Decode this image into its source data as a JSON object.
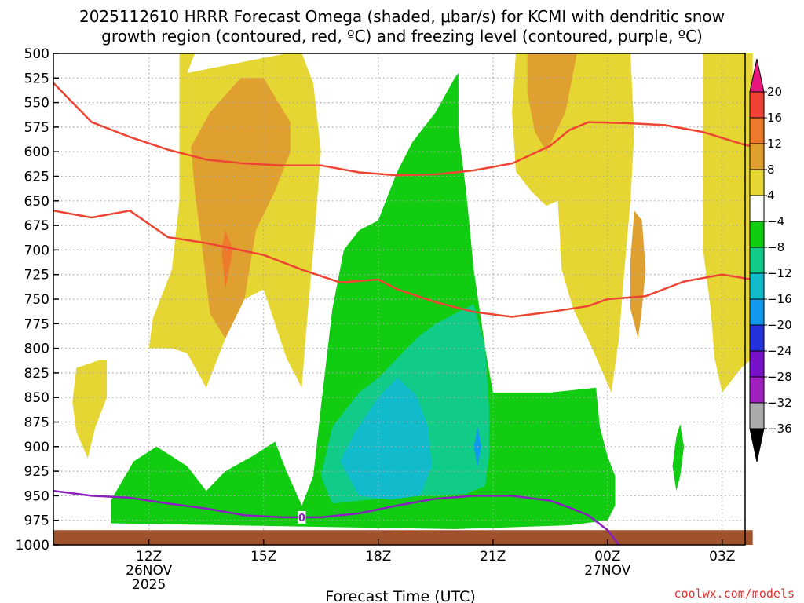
{
  "title_line1": "2025112610 HRRR Forecast Omega (shaded, μbar/s) for KCMI with dendritic snow",
  "title_line2": "growth region (contoured, red, ºC) and freezing level (contoured, purple, ºC)",
  "xlabel": "Forecast Time (UTC)",
  "credit": "coolwx.com/models",
  "freezing_label": "0",
  "colors": {
    "plot_bg": "#ffffff",
    "grid": "#aaaaaa",
    "ground": "#a0522d",
    "dgz_line": "#ee4433",
    "freezing_line": "#8a1fc0"
  },
  "chart_data": {
    "type": "heatmap",
    "x_range_hours": [
      9.5,
      27.6
    ],
    "y_range_mb": [
      500,
      1000
    ],
    "y_scale": "linear, pressure increasing downward",
    "grid": true,
    "y_ticks": [
      500,
      525,
      550,
      575,
      600,
      625,
      650,
      675,
      700,
      725,
      750,
      775,
      800,
      825,
      850,
      875,
      900,
      925,
      950,
      975,
      1000
    ],
    "x_ticks": [
      {
        "hour": 12,
        "label": "12Z",
        "sub1": "26NOV",
        "sub2": "2025"
      },
      {
        "hour": 15,
        "label": "15Z",
        "sub1": "",
        "sub2": ""
      },
      {
        "hour": 18,
        "label": "18Z",
        "sub1": "",
        "sub2": ""
      },
      {
        "hour": 21,
        "label": "21Z",
        "sub1": "",
        "sub2": ""
      },
      {
        "hour": 24,
        "label": "00Z",
        "sub1": "27NOV",
        "sub2": ""
      },
      {
        "hour": 27,
        "label": "03Z",
        "sub1": "",
        "sub2": ""
      }
    ],
    "colorbar": {
      "labels": [
        "20",
        "16",
        "12",
        "8",
        "4",
        "−4",
        "−8",
        "−12",
        "−16",
        "−20",
        "−24",
        "−28",
        "−32",
        "−36"
      ],
      "bins": [
        {
          "range": [
            20,
            99
          ],
          "color": "#e8177f"
        },
        {
          "range": [
            16,
            20
          ],
          "color": "#f24236"
        },
        {
          "range": [
            12,
            16
          ],
          "color": "#ec7a2a"
        },
        {
          "range": [
            8,
            12
          ],
          "color": "#e0a030"
        },
        {
          "range": [
            4,
            8
          ],
          "color": "#e6d634"
        },
        {
          "range": [
            -4,
            4
          ],
          "color": "#ffffff"
        },
        {
          "range": [
            -8,
            -4
          ],
          "color": "#11cc11"
        },
        {
          "range": [
            -12,
            -8
          ],
          "color": "#11cc88"
        },
        {
          "range": [
            -16,
            -12
          ],
          "color": "#11bbcc"
        },
        {
          "range": [
            -20,
            -16
          ],
          "color": "#1199ee"
        },
        {
          "range": [
            -24,
            -20
          ],
          "color": "#2233dd"
        },
        {
          "range": [
            -28,
            -24
          ],
          "color": "#7711cc"
        },
        {
          "range": [
            -32,
            -28
          ],
          "color": "#a020c0"
        },
        {
          "range": [
            -36,
            -32
          ],
          "color": "#aaaaaa"
        },
        {
          "range": [
            -99,
            -36
          ],
          "color": "#000000"
        }
      ]
    },
    "shaded_regions": [
      {
        "value_bin": "4 to 8",
        "color": "#e6d634",
        "points": [
          [
            12.8,
            500
          ],
          [
            13.2,
            500
          ],
          [
            13.0,
            520
          ],
          [
            15.6,
            500
          ],
          [
            16.0,
            500
          ],
          [
            16.3,
            530
          ],
          [
            16.5,
            600
          ],
          [
            16.3,
            700
          ],
          [
            16.1,
            790
          ],
          [
            16.0,
            840
          ],
          [
            15.6,
            810
          ],
          [
            15.0,
            740
          ],
          [
            14.5,
            750
          ],
          [
            14.0,
            790
          ],
          [
            13.5,
            840
          ],
          [
            13.0,
            805
          ],
          [
            12.6,
            800
          ],
          [
            12.0,
            800
          ],
          [
            12.1,
            770
          ],
          [
            12.6,
            720
          ],
          [
            12.8,
            650
          ],
          [
            12.8,
            580
          ]
        ]
      },
      {
        "value_bin": "4 to 8",
        "color": "#e6d634",
        "points": [
          [
            21.6,
            500
          ],
          [
            24.6,
            500
          ],
          [
            24.7,
            580
          ],
          [
            24.6,
            650
          ],
          [
            24.4,
            740
          ],
          [
            24.3,
            790
          ],
          [
            24.1,
            845
          ],
          [
            23.6,
            800
          ],
          [
            23.1,
            760
          ],
          [
            22.8,
            720
          ],
          [
            22.7,
            650
          ],
          [
            22.4,
            655
          ],
          [
            22.0,
            640
          ],
          [
            21.6,
            620
          ],
          [
            21.5,
            560
          ]
        ]
      },
      {
        "value_bin": "4 to 8",
        "color": "#e6d634",
        "points": [
          [
            26.5,
            500
          ],
          [
            27.8,
            500
          ],
          [
            27.8,
            810
          ],
          [
            27.5,
            820
          ],
          [
            27.0,
            845
          ],
          [
            26.8,
            810
          ],
          [
            26.7,
            760
          ],
          [
            26.5,
            700
          ],
          [
            26.5,
            600
          ]
        ]
      },
      {
        "value_bin": "4 to 8",
        "color": "#e6d634",
        "points": [
          [
            10.1,
            820
          ],
          [
            10.7,
            812
          ],
          [
            10.9,
            812
          ],
          [
            10.9,
            850
          ],
          [
            10.6,
            880
          ],
          [
            10.4,
            912
          ],
          [
            10.1,
            885
          ],
          [
            10.0,
            855
          ]
        ]
      },
      {
        "value_bin": "8 to 12",
        "color": "#e0a030",
        "points": [
          [
            13.6,
            560
          ],
          [
            14.4,
            525
          ],
          [
            15.0,
            525
          ],
          [
            15.7,
            570
          ],
          [
            15.7,
            600
          ],
          [
            15.3,
            640
          ],
          [
            14.8,
            680
          ],
          [
            14.5,
            750
          ],
          [
            14.0,
            790
          ],
          [
            13.6,
            765
          ],
          [
            13.4,
            700
          ],
          [
            13.2,
            640
          ],
          [
            13.1,
            595
          ]
        ]
      },
      {
        "value_bin": "8 to 12",
        "color": "#e0a030",
        "points": [
          [
            21.9,
            500
          ],
          [
            23.2,
            500
          ],
          [
            22.9,
            560
          ],
          [
            22.4,
            600
          ],
          [
            22.1,
            580
          ],
          [
            21.9,
            540
          ]
        ]
      },
      {
        "value_bin": "8 to 12",
        "color": "#e0a030",
        "points": [
          [
            24.7,
            660
          ],
          [
            24.9,
            670
          ],
          [
            25.0,
            720
          ],
          [
            24.9,
            760
          ],
          [
            24.8,
            790
          ],
          [
            24.6,
            760
          ],
          [
            24.6,
            710
          ]
        ]
      },
      {
        "value_bin": "12 to 16",
        "color": "#ec7a2a",
        "points": [
          [
            14.0,
            680
          ],
          [
            14.2,
            700
          ],
          [
            14.0,
            740
          ],
          [
            13.9,
            700
          ]
        ]
      },
      {
        "value_bin": "-4 to -8",
        "color": "#11cc11",
        "points": [
          [
            11.0,
            955
          ],
          [
            11.6,
            915
          ],
          [
            12.2,
            900
          ],
          [
            13.0,
            920
          ],
          [
            13.5,
            945
          ],
          [
            14.0,
            925
          ],
          [
            14.7,
            910
          ],
          [
            15.3,
            895
          ],
          [
            15.6,
            925
          ],
          [
            16.0,
            960
          ],
          [
            16.3,
            930
          ],
          [
            16.5,
            860
          ],
          [
            16.8,
            760
          ],
          [
            17.1,
            700
          ],
          [
            17.5,
            680
          ],
          [
            18.0,
            670
          ],
          [
            18.5,
            620
          ],
          [
            18.9,
            590
          ],
          [
            19.5,
            560
          ],
          [
            20.0,
            525
          ],
          [
            20.1,
            520
          ],
          [
            20.1,
            580
          ],
          [
            20.3,
            640
          ],
          [
            20.5,
            720
          ],
          [
            20.8,
            800
          ],
          [
            21.0,
            845
          ],
          [
            22.5,
            845
          ],
          [
            23.7,
            840
          ],
          [
            23.8,
            880
          ],
          [
            24.0,
            910
          ],
          [
            24.2,
            930
          ],
          [
            24.2,
            960
          ],
          [
            24.0,
            975
          ],
          [
            23.0,
            980
          ],
          [
            20.0,
            984
          ],
          [
            17.0,
            982
          ],
          [
            14.0,
            980
          ],
          [
            11.0,
            978
          ]
        ]
      },
      {
        "value_bin": "-4 to -8",
        "color": "#11cc11",
        "points": [
          [
            25.8,
            890
          ],
          [
            25.9,
            877
          ],
          [
            26.0,
            900
          ],
          [
            25.9,
            930
          ],
          [
            25.8,
            945
          ],
          [
            25.7,
            920
          ]
        ]
      },
      {
        "value_bin": "-8 to -12",
        "color": "#11cc88",
        "points": [
          [
            16.5,
            930
          ],
          [
            16.8,
            880
          ],
          [
            17.5,
            845
          ],
          [
            18.0,
            830
          ],
          [
            18.5,
            810
          ],
          [
            19.0,
            790
          ],
          [
            19.5,
            775
          ],
          [
            20.0,
            765
          ],
          [
            20.5,
            755
          ],
          [
            20.8,
            800
          ],
          [
            20.9,
            860
          ],
          [
            20.9,
            910
          ],
          [
            20.8,
            940
          ],
          [
            20.3,
            948
          ],
          [
            19.5,
            950
          ],
          [
            18.9,
            950
          ],
          [
            18.3,
            952
          ],
          [
            17.5,
            955
          ],
          [
            16.8,
            958
          ]
        ]
      },
      {
        "value_bin": "-12 to -16",
        "color": "#11bbcc",
        "points": [
          [
            17.0,
            915
          ],
          [
            17.4,
            885
          ],
          [
            18.0,
            850
          ],
          [
            18.5,
            830
          ],
          [
            19.0,
            848
          ],
          [
            19.3,
            880
          ],
          [
            19.4,
            920
          ],
          [
            19.1,
            950
          ],
          [
            18.3,
            954
          ],
          [
            17.5,
            950
          ]
        ]
      },
      {
        "value_bin": "-16 to -20",
        "color": "#1199ee",
        "points": [
          [
            20.6,
            880
          ],
          [
            20.7,
            900
          ],
          [
            20.6,
            920
          ],
          [
            20.5,
            900
          ]
        ]
      }
    ],
    "dgz_contours": [
      {
        "name": "upper",
        "points": [
          [
            9.5,
            530
          ],
          [
            10.5,
            570
          ],
          [
            11.5,
            585
          ],
          [
            12.5,
            598
          ],
          [
            13.5,
            608
          ],
          [
            14.5,
            612
          ],
          [
            15.5,
            614
          ],
          [
            16.5,
            614
          ],
          [
            17.5,
            621
          ],
          [
            18.5,
            624
          ],
          [
            19.5,
            623
          ],
          [
            20.5,
            619
          ],
          [
            21.5,
            612
          ],
          [
            22.5,
            594
          ],
          [
            23.0,
            578
          ],
          [
            23.5,
            570
          ],
          [
            24.5,
            571
          ],
          [
            25.5,
            573
          ],
          [
            26.5,
            580
          ],
          [
            27.5,
            592
          ],
          [
            27.8,
            595
          ]
        ]
      },
      {
        "name": "lower",
        "points": [
          [
            9.5,
            660
          ],
          [
            10.5,
            667
          ],
          [
            11.5,
            660
          ],
          [
            12.5,
            687
          ],
          [
            13.5,
            693
          ],
          [
            14.5,
            701
          ],
          [
            15.0,
            705
          ],
          [
            16.0,
            720
          ],
          [
            17.0,
            733
          ],
          [
            18.0,
            730
          ],
          [
            18.5,
            740
          ],
          [
            19.5,
            753
          ],
          [
            20.5,
            763
          ],
          [
            21.5,
            768
          ],
          [
            22.5,
            763
          ],
          [
            23.5,
            757
          ],
          [
            24.0,
            750
          ],
          [
            25.0,
            747
          ],
          [
            26.0,
            732
          ],
          [
            27.0,
            725
          ],
          [
            27.8,
            730
          ]
        ]
      }
    ],
    "freezing_level": [
      [
        9.5,
        945
      ],
      [
        10.5,
        950
      ],
      [
        11.5,
        952
      ],
      [
        12.5,
        958
      ],
      [
        13.5,
        963
      ],
      [
        14.5,
        970
      ],
      [
        15.5,
        972
      ],
      [
        16.5,
        972
      ],
      [
        17.5,
        968
      ],
      [
        18.5,
        960
      ],
      [
        19.5,
        953
      ],
      [
        20.5,
        950
      ],
      [
        21.5,
        950
      ],
      [
        22.5,
        955
      ],
      [
        23.0,
        962
      ],
      [
        23.5,
        970
      ],
      [
        24.0,
        985
      ],
      [
        24.3,
        1000
      ]
    ],
    "ground_surface": [
      [
        9.5,
        985
      ],
      [
        27.8,
        985
      ]
    ]
  }
}
